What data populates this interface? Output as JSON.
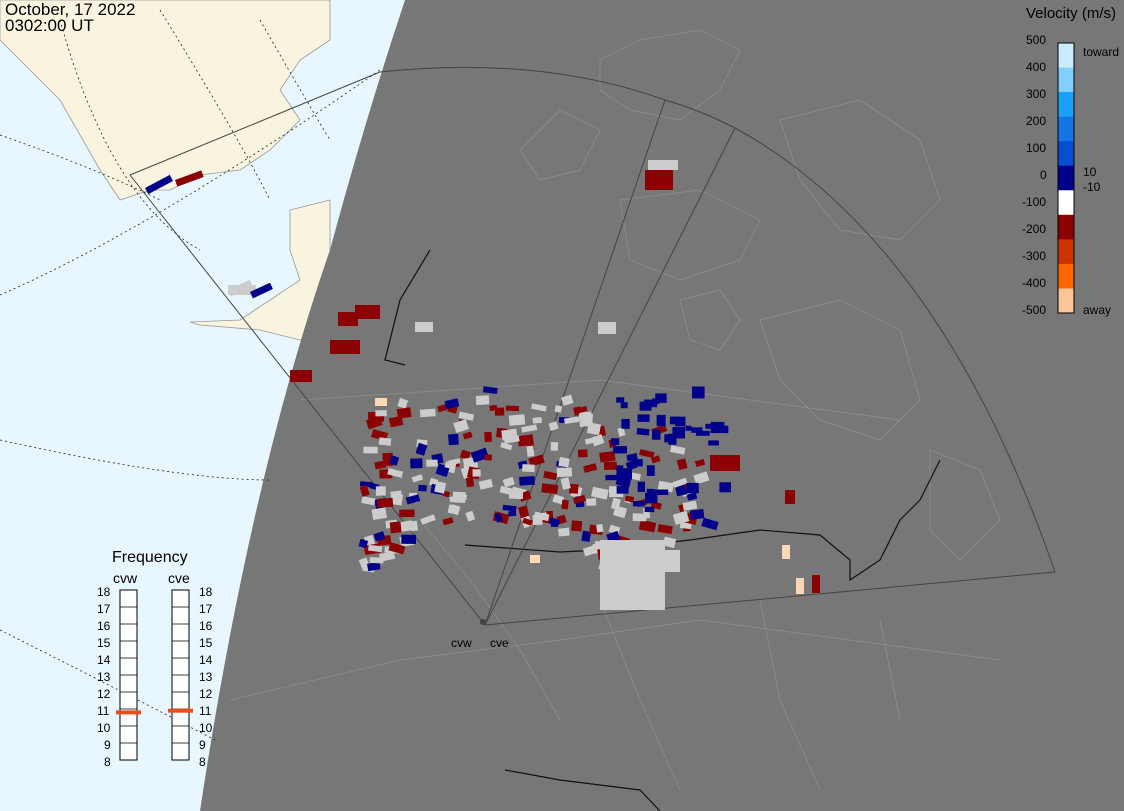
{
  "timestamp": {
    "date": "October, 17 2022",
    "time": "0302:00 UT"
  },
  "velocity_scale": {
    "title": "Velocity (m/s)",
    "ticks": [
      "500",
      "400",
      "300",
      "200",
      "100",
      "0",
      "-100",
      "-200",
      "-300",
      "-400",
      "-500"
    ],
    "labels": {
      "toward": "toward",
      "away": "away",
      "plus10": "10",
      "minus10": "-10"
    },
    "colors": [
      "#c9ecff",
      "#7fd0ff",
      "#1aa0f5",
      "#1476e6",
      "#0a4ed0",
      "#00008b",
      "#ffffff",
      "#8b0000",
      "#cc3300",
      "#ff6600",
      "#ffc599"
    ]
  },
  "frequency": {
    "title": "Frequency",
    "radars": [
      {
        "code": "cvw",
        "freq_mhz": 10.8
      },
      {
        "code": "cve",
        "freq_mhz": 10.9
      }
    ],
    "scale": [
      "18",
      "17",
      "16",
      "15",
      "14",
      "13",
      "12",
      "11",
      "10",
      "9",
      "8"
    ],
    "marker_color": "#e84e1a"
  },
  "map": {
    "land_color": "#777777",
    "ocean_color": "#e8f6ff",
    "alaska_color": "#f8f4e0",
    "radar_sites": [
      "cvw",
      "cve"
    ],
    "scatter_colors": {
      "ground": "#cccccc",
      "toward": "#00008b",
      "away": "#8b0000"
    }
  }
}
